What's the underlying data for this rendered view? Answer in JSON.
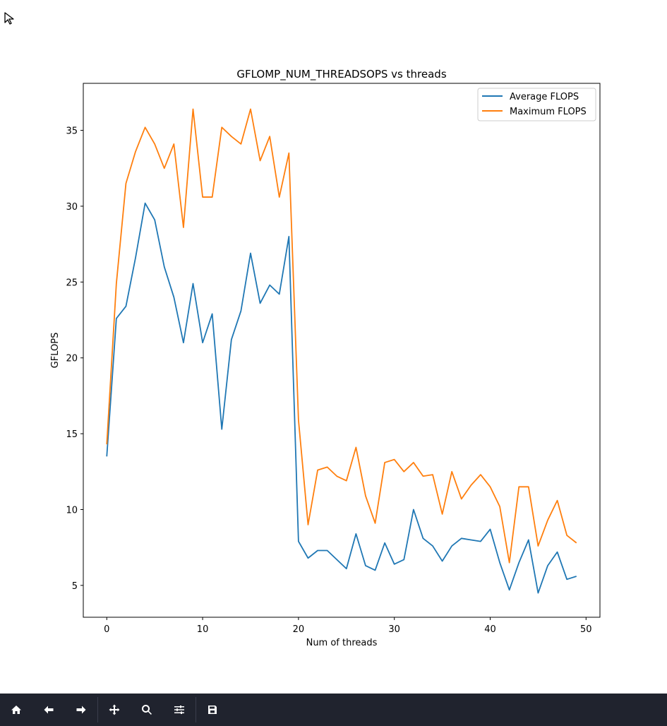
{
  "window": {
    "app_icon": "cursor-arrow-icon"
  },
  "chart_data": {
    "type": "line",
    "title": "GFLOMP_NUM_THREADSOPS vs threads",
    "xlabel": "Num of threads",
    "ylabel": "GFLOPS",
    "xlim": [
      -2.45,
      51.45
    ],
    "ylim": [
      2.9,
      38.1
    ],
    "xticks": [
      0,
      10,
      20,
      30,
      40,
      50
    ],
    "yticks": [
      5,
      10,
      15,
      20,
      25,
      30,
      35
    ],
    "grid": false,
    "legend_position": "top-right",
    "x": [
      0,
      1,
      2,
      3,
      4,
      5,
      6,
      7,
      8,
      9,
      10,
      11,
      12,
      13,
      14,
      15,
      16,
      17,
      18,
      19,
      20,
      21,
      22,
      23,
      24,
      25,
      26,
      27,
      28,
      29,
      30,
      31,
      32,
      33,
      34,
      35,
      36,
      37,
      38,
      39,
      40,
      41,
      42,
      43,
      44,
      45,
      46,
      47,
      48,
      49
    ],
    "series": [
      {
        "name": "Average FLOPS",
        "color": "#1f77b4",
        "values": [
          13.5,
          22.6,
          23.4,
          26.6,
          30.2,
          29.1,
          26.0,
          24.0,
          21.0,
          24.9,
          21.0,
          22.9,
          15.3,
          21.2,
          23.1,
          26.9,
          23.6,
          24.8,
          24.2,
          28.0,
          7.9,
          6.8,
          7.3,
          7.3,
          6.7,
          6.1,
          8.4,
          6.3,
          6.0,
          7.8,
          6.4,
          6.7,
          10.0,
          8.1,
          7.6,
          6.6,
          7.6,
          8.1,
          8.0,
          7.9,
          8.7,
          6.5,
          4.7,
          6.5,
          8.0,
          4.5,
          6.3,
          7.2,
          5.4,
          5.6
        ]
      },
      {
        "name": "Maximum FLOPS",
        "color": "#ff7f0e",
        "values": [
          14.3,
          24.9,
          31.5,
          33.6,
          35.2,
          34.1,
          32.5,
          34.1,
          28.6,
          36.4,
          30.6,
          30.6,
          35.2,
          34.6,
          34.1,
          36.4,
          33.0,
          34.6,
          30.6,
          33.5,
          15.9,
          9.0,
          12.6,
          12.8,
          12.2,
          11.9,
          14.1,
          10.9,
          9.1,
          13.1,
          13.3,
          12.5,
          13.1,
          12.2,
          12.3,
          9.7,
          12.5,
          10.7,
          11.6,
          12.3,
          11.5,
          10.2,
          6.5,
          11.5,
          11.5,
          7.6,
          9.3,
          10.6,
          8.3,
          7.8
        ]
      }
    ]
  },
  "toolbar": {
    "buttons": [
      {
        "name": "home-icon",
        "label": "Home"
      },
      {
        "name": "back-arrow-icon",
        "label": "Back"
      },
      {
        "name": "forward-arrow-icon",
        "label": "Forward"
      },
      {
        "name": "pan-move-icon",
        "label": "Pan"
      },
      {
        "name": "zoom-magnifier-icon",
        "label": "Zoom"
      },
      {
        "name": "configure-sliders-icon",
        "label": "Configure subplots"
      },
      {
        "name": "save-floppy-icon",
        "label": "Save"
      }
    ]
  }
}
